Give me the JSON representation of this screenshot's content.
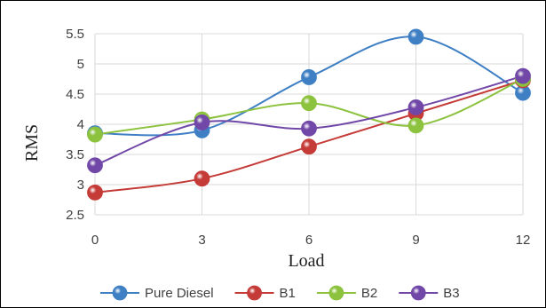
{
  "chart_data": {
    "type": "line",
    "xlabel": "Load",
    "ylabel": "RMS",
    "x": [
      0,
      3,
      6,
      9,
      12
    ],
    "x_tick_labels": [
      "0",
      "3",
      "6",
      "9",
      "12"
    ],
    "ylim": [
      2.5,
      5.5
    ],
    "y_tick_labels": [
      "2.5",
      "3",
      "3.5",
      "4",
      "4.5",
      "5",
      "5.5"
    ],
    "grid": "both",
    "legend_position": "bottom",
    "series": [
      {
        "name": "Pure Diesel",
        "color": "#3f7fc4",
        "values": [
          3.85,
          3.9,
          4.78,
          5.45,
          4.52
        ]
      },
      {
        "name": "B1",
        "color": "#c43b37",
        "values": [
          2.87,
          3.1,
          3.63,
          4.18,
          4.73
        ]
      },
      {
        "name": "B2",
        "color": "#8cc23e",
        "values": [
          3.83,
          4.08,
          4.35,
          3.98,
          4.75
        ]
      },
      {
        "name": "B3",
        "color": "#7148a8",
        "values": [
          3.32,
          4.03,
          3.93,
          4.28,
          4.8
        ]
      }
    ]
  }
}
